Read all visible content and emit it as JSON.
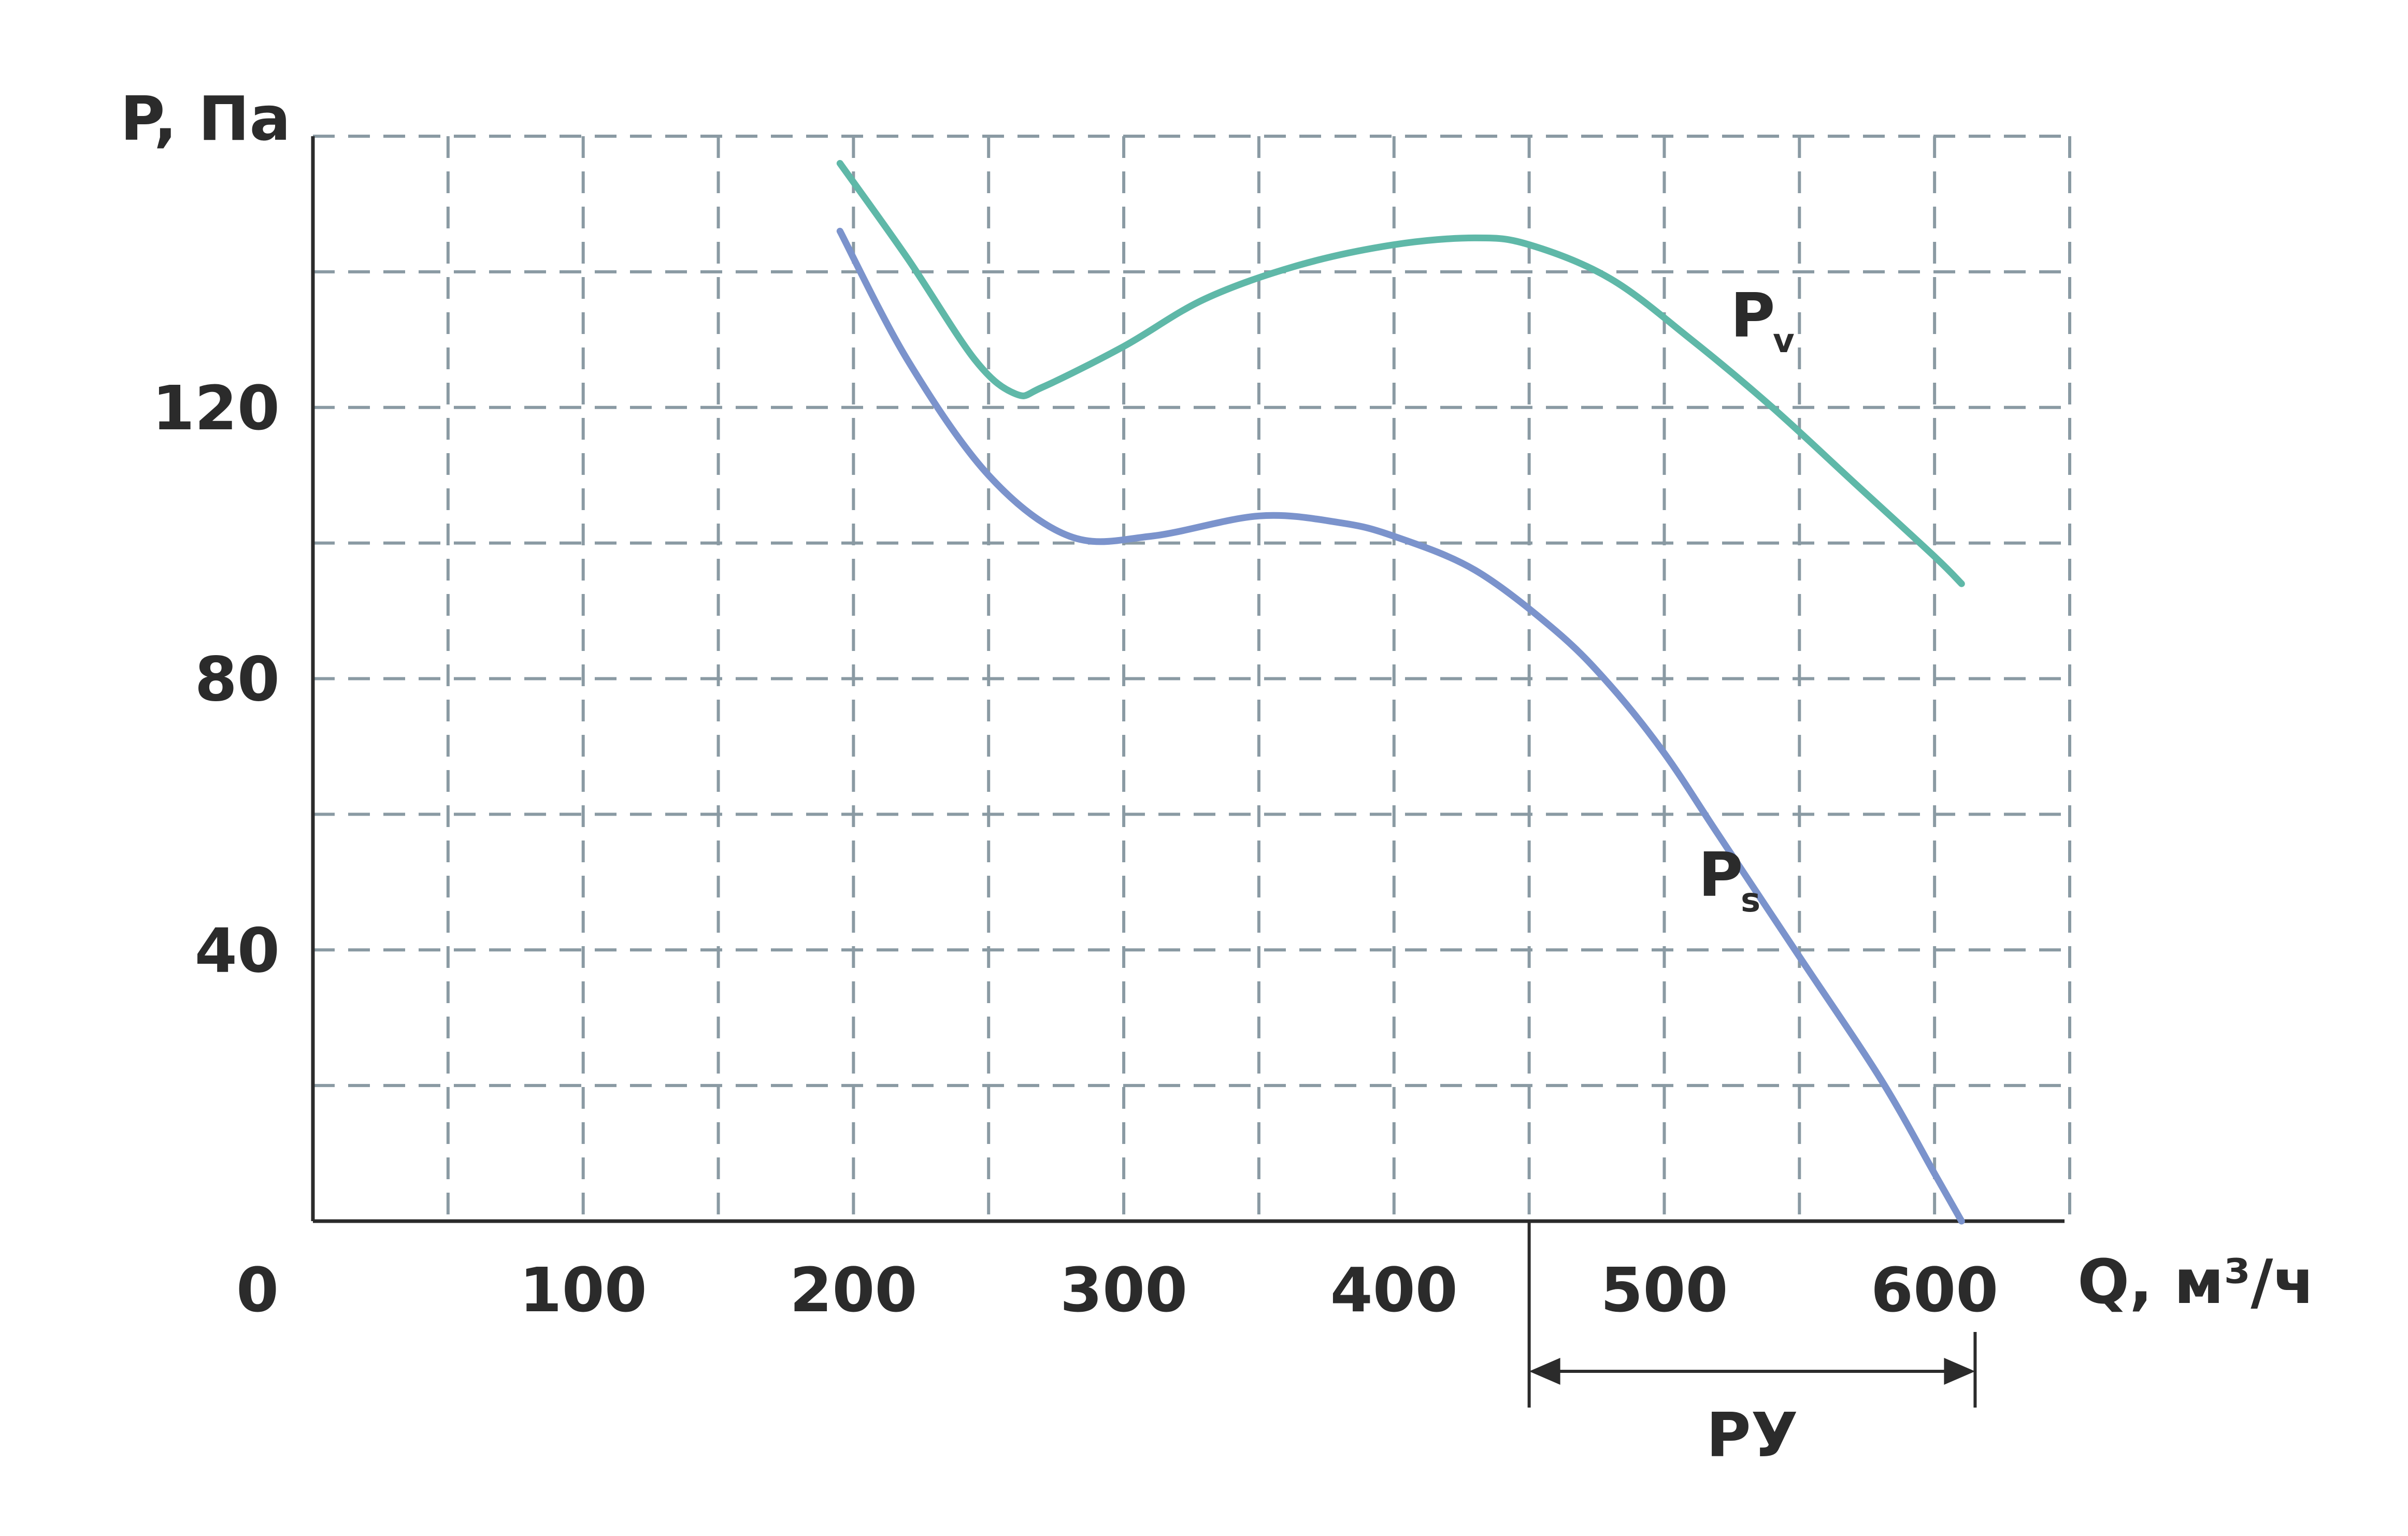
{
  "chart_data": {
    "type": "line",
    "ylabel": "P, Па",
    "xlabel": "Q, м³/ч",
    "xlim": [
      0,
      650
    ],
    "ylim": [
      0,
      160
    ],
    "x_ticks": [
      0,
      100,
      200,
      300,
      400,
      500,
      600
    ],
    "y_ticks": [
      40,
      80,
      120
    ],
    "x_grid": [
      50,
      100,
      150,
      200,
      250,
      300,
      350,
      400,
      450,
      500,
      550,
      600,
      650
    ],
    "y_grid": [
      20,
      40,
      60,
      80,
      100,
      120,
      140,
      160
    ],
    "grid": true,
    "colors": {
      "Pv": "#5fb8a8",
      "Ps": "#7b93cc"
    },
    "series": [
      {
        "name": "P",
        "subscript": "v",
        "x": [
          195,
          220,
          245,
          260,
          270,
          300,
          330,
          365,
          400,
          430,
          450,
          480,
          510,
          540,
          570,
          600,
          610
        ],
        "y": [
          156,
          142,
          127,
          122,
          123,
          129,
          136,
          141,
          144,
          145,
          144,
          139,
          130,
          120,
          109,
          98,
          94
        ]
      },
      {
        "name": "P",
        "subscript": "s",
        "x": [
          195,
          220,
          250,
          280,
          310,
          350,
          380,
          400,
          430,
          460,
          480,
          500,
          520,
          550,
          580,
          600,
          610
        ],
        "y": [
          146,
          127,
          110,
          101,
          101,
          104,
          103,
          101,
          96,
          87,
          79,
          69,
          57,
          39,
          21,
          7,
          0
        ]
      }
    ],
    "annotations": [
      {
        "label": "РУ",
        "x_from": 450,
        "x_to": 615
      }
    ]
  }
}
